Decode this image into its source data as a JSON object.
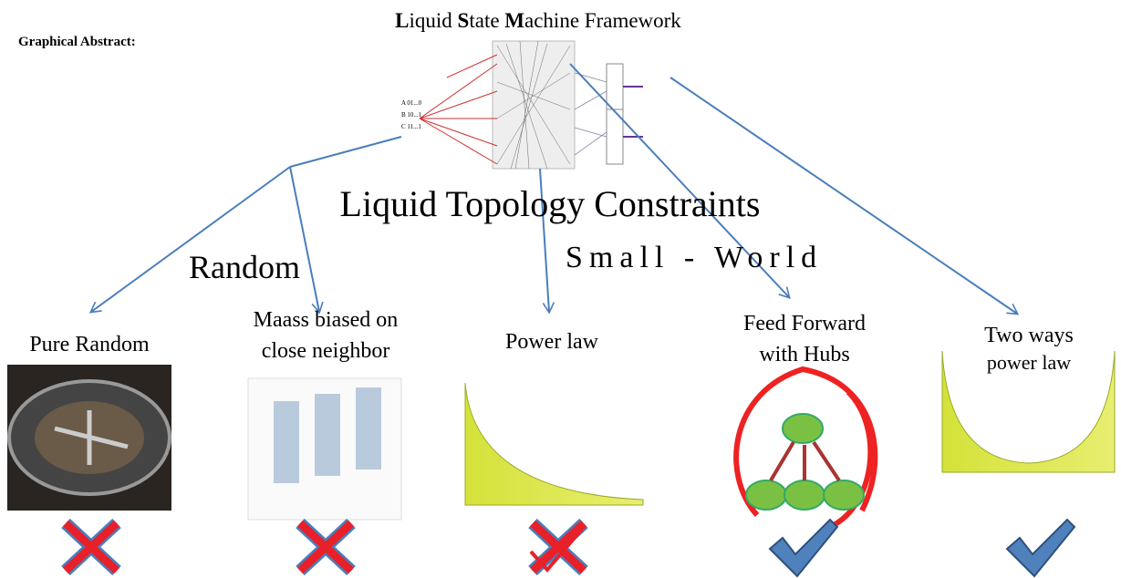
{
  "header": {
    "label": "Graphical Abstract:",
    "title_parts": [
      {
        "text": "L",
        "bold": true
      },
      {
        "text": "iquid ",
        "bold": false
      },
      {
        "text": "S",
        "bold": true
      },
      {
        "text": "tate ",
        "bold": false
      },
      {
        "text": "M",
        "bold": true
      },
      {
        "text": "achine Framework",
        "bold": false
      }
    ]
  },
  "constraints": "Liquid Topology Constraints",
  "groups": [
    "Random",
    "Small - World"
  ],
  "nodes": [
    {
      "lines": [
        "Pure Random"
      ],
      "verdict": "cross"
    },
    {
      "lines": [
        "Maass biased on",
        "close neighbor"
      ],
      "verdict": "cross"
    },
    {
      "lines": [
        "Power law"
      ],
      "verdict": "cross-check"
    },
    {
      "lines": [
        "Feed Forward",
        "with Hubs"
      ],
      "verdict": "check"
    },
    {
      "lines": [
        "Two ways",
        "power law"
      ],
      "verdict": "check"
    }
  ]
}
